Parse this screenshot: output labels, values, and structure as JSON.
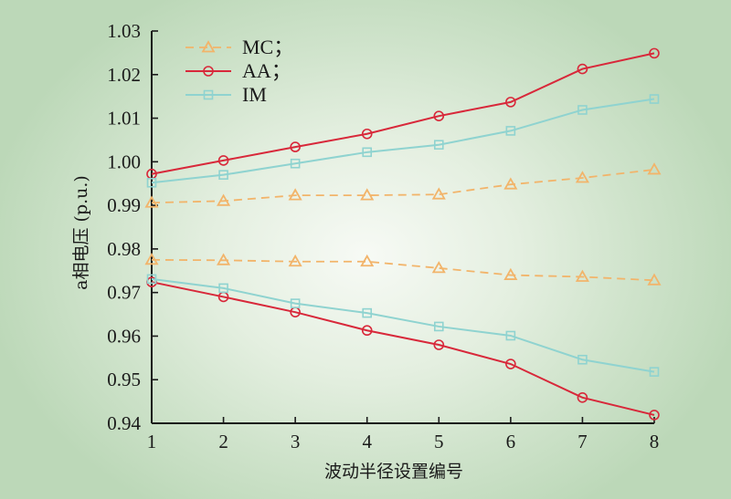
{
  "chart_data": {
    "type": "line",
    "title": "",
    "xlabel": "波动半径设置编号",
    "ylabel": "a相电压 (p.u.)",
    "x": [
      1,
      2,
      3,
      4,
      5,
      6,
      7,
      8
    ],
    "xticks": [
      "1",
      "2",
      "3",
      "4",
      "5",
      "6",
      "7",
      "8"
    ],
    "xlim": [
      1,
      8
    ],
    "ylim": [
      0.94,
      1.03
    ],
    "yticks": [
      "0.94",
      "0.95",
      "0.96",
      "0.97",
      "0.98",
      "0.99",
      "1.00",
      "1.01",
      "1.02",
      "1.03"
    ],
    "grid": false,
    "legend_position": "top-left",
    "series": [
      {
        "name": "MC",
        "legend_label": "MC；",
        "color": "#f2b46a",
        "style": "dashed",
        "marker": "triangle",
        "upper": [
          0.9906,
          0.991,
          0.9923,
          0.9923,
          0.9925,
          0.9948,
          0.9963,
          0.9982
        ],
        "lower": [
          0.9775,
          0.9774,
          0.9771,
          0.9771,
          0.9756,
          0.974,
          0.9736,
          0.9728
        ]
      },
      {
        "name": "AA",
        "legend_label": "AA；",
        "color": "#d8283a",
        "style": "solid",
        "marker": "circle",
        "upper": [
          0.9972,
          1.0003,
          1.0034,
          1.0064,
          1.0105,
          1.0137,
          1.0213,
          1.0249
        ],
        "lower": [
          0.9724,
          0.969,
          0.9655,
          0.9613,
          0.958,
          0.9536,
          0.9459,
          0.9419
        ]
      },
      {
        "name": "IM",
        "legend_label": "IM",
        "color": "#8fd3d0",
        "style": "solid",
        "marker": "square",
        "upper": [
          0.9952,
          0.997,
          0.9996,
          1.0022,
          1.0039,
          1.0071,
          1.0119,
          1.0144
        ],
        "lower": [
          0.9731,
          0.971,
          0.9675,
          0.9653,
          0.9622,
          0.9601,
          0.9546,
          0.9518
        ]
      }
    ]
  }
}
